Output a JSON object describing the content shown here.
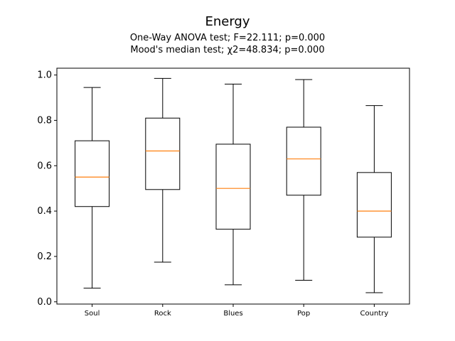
{
  "chart_data": {
    "type": "box",
    "title": "Energy",
    "subtitle_lines": [
      "One-Way ANOVA test; F=22.111; p=0.000",
      "Mood's median test; χ2=48.834; p=0.000"
    ],
    "xlabel": "",
    "ylabel": "",
    "categories": [
      "Soul",
      "Rock",
      "Blues",
      "Pop",
      "Country"
    ],
    "boxes": [
      {
        "min": 0.06,
        "q1": 0.42,
        "median": 0.55,
        "q3": 0.71,
        "max": 0.945
      },
      {
        "min": 0.175,
        "q1": 0.495,
        "median": 0.665,
        "q3": 0.81,
        "max": 0.985
      },
      {
        "min": 0.075,
        "q1": 0.32,
        "median": 0.5,
        "q3": 0.695,
        "max": 0.96
      },
      {
        "min": 0.095,
        "q1": 0.47,
        "median": 0.63,
        "q3": 0.77,
        "max": 0.98
      },
      {
        "min": 0.04,
        "q1": 0.285,
        "median": 0.4,
        "q3": 0.57,
        "max": 0.865
      }
    ],
    "yticks": [
      "0.0",
      "0.2",
      "0.4",
      "0.6",
      "0.8",
      "1.0"
    ],
    "ylim": [
      -0.01,
      1.03
    ],
    "grid": false,
    "colors": {
      "box": "#000000",
      "median": "#ff7f0e"
    }
  }
}
